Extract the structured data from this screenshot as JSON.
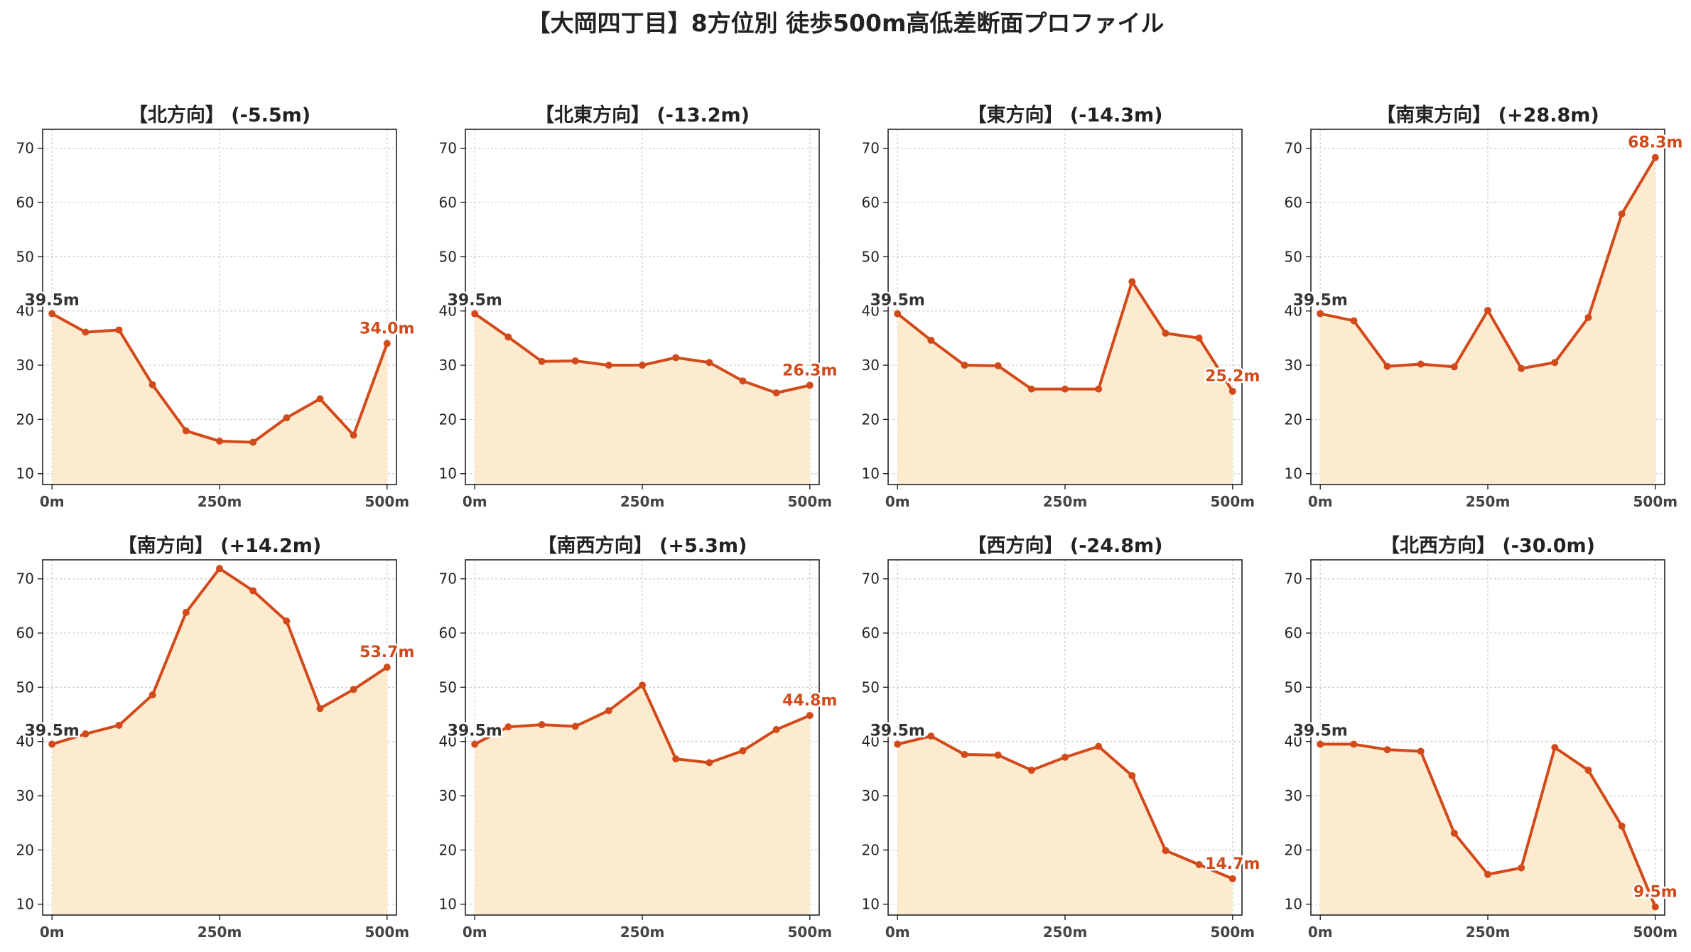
{
  "suptitle": "【大岡四丁目】8方位別 徒歩500m高低差断面プロファイル",
  "colors": {
    "line": "#d24a1a",
    "fill": "#fdebd0",
    "grid": "#cccccc",
    "axis": "#222222",
    "start_label": "#333333",
    "end_label": "#d24a1a"
  },
  "chart_data": [
    {
      "type": "area",
      "title": "【北方向】 (-5.5m)",
      "x": [
        0,
        50,
        100,
        150,
        200,
        250,
        300,
        350,
        400,
        450,
        500
      ],
      "y": [
        39.5,
        36.1,
        36.5,
        26.4,
        17.9,
        16.0,
        15.8,
        20.3,
        23.8,
        17.1,
        34.0
      ],
      "start_label": "39.5m",
      "end_label": "34.0m",
      "xticks": [
        0,
        250,
        500
      ],
      "xtick_labels": [
        "0m",
        "250m",
        "500m"
      ],
      "yticks": [
        10,
        20,
        30,
        40,
        50,
        60,
        70
      ],
      "ylim": [
        8,
        73.5
      ],
      "xlim": [
        -14,
        514
      ],
      "grid": true
    },
    {
      "type": "area",
      "title": "【北東方向】 (-13.2m)",
      "x": [
        0,
        50,
        100,
        150,
        200,
        250,
        300,
        350,
        400,
        450,
        500
      ],
      "y": [
        39.5,
        35.2,
        30.7,
        30.8,
        30.0,
        30.0,
        31.4,
        30.5,
        27.1,
        24.9,
        26.3
      ],
      "start_label": "39.5m",
      "end_label": "26.3m",
      "xticks": [
        0,
        250,
        500
      ],
      "xtick_labels": [
        "0m",
        "250m",
        "500m"
      ],
      "yticks": [
        10,
        20,
        30,
        40,
        50,
        60,
        70
      ],
      "ylim": [
        8,
        73.5
      ],
      "xlim": [
        -14,
        514
      ],
      "grid": true
    },
    {
      "type": "area",
      "title": "【東方向】 (-14.3m)",
      "x": [
        0,
        50,
        100,
        150,
        200,
        250,
        300,
        350,
        400,
        450,
        500
      ],
      "y": [
        39.5,
        34.6,
        30.0,
        29.9,
        25.6,
        25.6,
        25.6,
        45.4,
        35.9,
        35.0,
        25.2
      ],
      "start_label": "39.5m",
      "end_label": "25.2m",
      "xticks": [
        0,
        250,
        500
      ],
      "xtick_labels": [
        "0m",
        "250m",
        "500m"
      ],
      "yticks": [
        10,
        20,
        30,
        40,
        50,
        60,
        70
      ],
      "ylim": [
        8,
        73.5
      ],
      "xlim": [
        -14,
        514
      ],
      "grid": true
    },
    {
      "type": "area",
      "title": "【南東方向】 (+28.8m)",
      "x": [
        0,
        50,
        100,
        150,
        200,
        250,
        300,
        350,
        400,
        450,
        500
      ],
      "y": [
        39.5,
        38.2,
        29.8,
        30.2,
        29.7,
        40.1,
        29.4,
        30.5,
        38.8,
        57.9,
        68.3
      ],
      "start_label": "39.5m",
      "end_label": "68.3m",
      "xticks": [
        0,
        250,
        500
      ],
      "xtick_labels": [
        "0m",
        "250m",
        "500m"
      ],
      "yticks": [
        10,
        20,
        30,
        40,
        50,
        60,
        70
      ],
      "ylim": [
        8,
        73.5
      ],
      "xlim": [
        -14,
        514
      ],
      "grid": true
    },
    {
      "type": "area",
      "title": "【南方向】 (+14.2m)",
      "x": [
        0,
        50,
        100,
        150,
        200,
        250,
        300,
        350,
        400,
        450,
        500
      ],
      "y": [
        39.5,
        41.4,
        43.0,
        48.6,
        63.8,
        71.9,
        67.8,
        62.2,
        46.1,
        49.6,
        53.7
      ],
      "start_label": "39.5m",
      "end_label": "53.7m",
      "xticks": [
        0,
        250,
        500
      ],
      "xtick_labels": [
        "0m",
        "250m",
        "500m"
      ],
      "yticks": [
        10,
        20,
        30,
        40,
        50,
        60,
        70
      ],
      "ylim": [
        8,
        73.5
      ],
      "xlim": [
        -14,
        514
      ],
      "grid": true
    },
    {
      "type": "area",
      "title": "【南西方向】 (+5.3m)",
      "x": [
        0,
        50,
        100,
        150,
        200,
        250,
        300,
        350,
        400,
        450,
        500
      ],
      "y": [
        39.5,
        42.7,
        43.1,
        42.8,
        45.7,
        50.4,
        36.8,
        36.1,
        38.3,
        42.2,
        44.8
      ],
      "start_label": "39.5m",
      "end_label": "44.8m",
      "xticks": [
        0,
        250,
        500
      ],
      "xtick_labels": [
        "0m",
        "250m",
        "500m"
      ],
      "yticks": [
        10,
        20,
        30,
        40,
        50,
        60,
        70
      ],
      "ylim": [
        8,
        73.5
      ],
      "xlim": [
        -14,
        514
      ],
      "grid": true
    },
    {
      "type": "area",
      "title": "【西方向】 (-24.8m)",
      "x": [
        0,
        50,
        100,
        150,
        200,
        250,
        300,
        350,
        400,
        450,
        500
      ],
      "y": [
        39.5,
        41.0,
        37.6,
        37.5,
        34.7,
        37.1,
        39.1,
        33.7,
        19.9,
        17.3,
        14.7
      ],
      "start_label": "39.5m",
      "end_label": "14.7m",
      "xticks": [
        0,
        250,
        500
      ],
      "xtick_labels": [
        "0m",
        "250m",
        "500m"
      ],
      "yticks": [
        10,
        20,
        30,
        40,
        50,
        60,
        70
      ],
      "ylim": [
        8,
        73.5
      ],
      "xlim": [
        -14,
        514
      ],
      "grid": true
    },
    {
      "type": "area",
      "title": "【北西方向】 (-30.0m)",
      "x": [
        0,
        50,
        100,
        150,
        200,
        250,
        300,
        350,
        400,
        450,
        500
      ],
      "y": [
        39.5,
        39.5,
        38.5,
        38.2,
        23.1,
        15.5,
        16.7,
        38.9,
        34.7,
        24.4,
        9.5
      ],
      "start_label": "39.5m",
      "end_label": "9.5m",
      "xticks": [
        0,
        250,
        500
      ],
      "xtick_labels": [
        "0m",
        "250m",
        "500m"
      ],
      "yticks": [
        10,
        20,
        30,
        40,
        50,
        60,
        70
      ],
      "ylim": [
        8,
        73.5
      ],
      "xlim": [
        -14,
        514
      ],
      "grid": true
    }
  ]
}
